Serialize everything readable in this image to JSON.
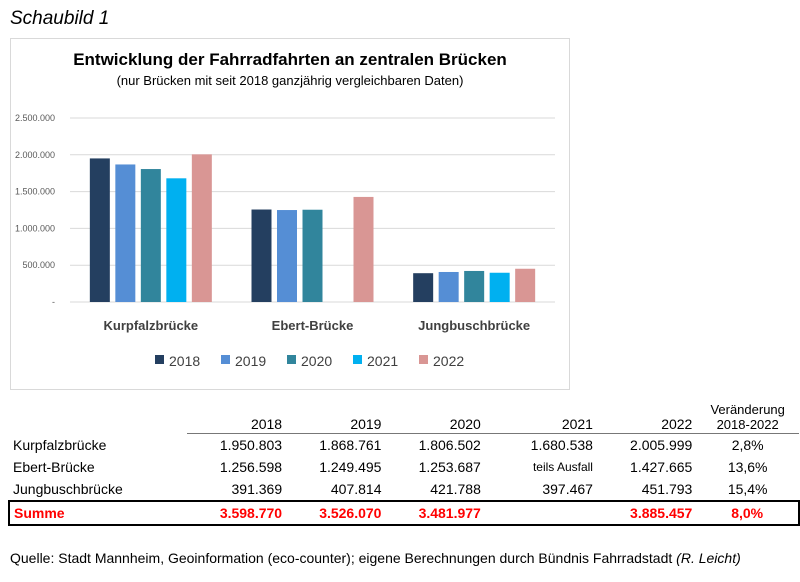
{
  "figure_label": "Schaubild 1",
  "chart_data": {
    "type": "bar",
    "title": "Entwicklung der Fahrradfahrten an zentralen Brücken",
    "subtitle": "(nur Brücken mit seit 2018 ganzjährig vergleichbaren Daten)",
    "categories": [
      "Kurpfalzbrücke",
      "Ebert-Brücke",
      "Jungbuschbrücke"
    ],
    "series": [
      {
        "name": "2018",
        "color": "#243f60",
        "values": [
          1950803,
          1256598,
          391369
        ]
      },
      {
        "name": "2019",
        "color": "#558ed5",
        "values": [
          1868761,
          1249495,
          407814
        ]
      },
      {
        "name": "2020",
        "color": "#31859c",
        "values": [
          1806502,
          1253687,
          421788
        ]
      },
      {
        "name": "2021",
        "color": "#00b0f0",
        "values": [
          1680538,
          null,
          397467
        ]
      },
      {
        "name": "2022",
        "color": "#d99694",
        "values": [
          2005999,
          1427665,
          451793
        ]
      }
    ],
    "ylim": [
      0,
      2500000
    ],
    "yticks": [
      "-",
      "500.000",
      "1.000.000",
      "1.500.000",
      "2.000.000",
      "2.500.000"
    ],
    "grid": true,
    "legend": "bottom"
  },
  "table": {
    "headers": [
      "2018",
      "2019",
      "2020",
      "2021",
      "2022"
    ],
    "change_header": [
      "Veränderung",
      "2018-2022"
    ],
    "rows": [
      {
        "name": "Kurpfalzbrücke",
        "values": [
          "1.950.803",
          "1.868.761",
          "1.806.502",
          "1.680.538",
          "2.005.999"
        ],
        "change": "2,8%"
      },
      {
        "name": "Ebert-Brücke",
        "values": [
          "1.256.598",
          "1.249.495",
          "1.253.687",
          "teils Ausfall",
          "1.427.665"
        ],
        "change": "13,6%"
      },
      {
        "name": "Jungbuschbrücke",
        "values": [
          "391.369",
          "407.814",
          "421.788",
          "397.467",
          "451.793"
        ],
        "change": "15,4%"
      }
    ],
    "sum": {
      "name": "Summe",
      "values": [
        "3.598.770",
        "3.526.070",
        "3.481.977",
        "",
        "3.885.457"
      ],
      "change": "8,0%"
    }
  },
  "source": "Quelle: Stadt Mannheim, Geoinformation (eco-counter); eigene Berechnungen durch Bündnis Fahrradstadt",
  "source_author": "(R. Leicht)"
}
